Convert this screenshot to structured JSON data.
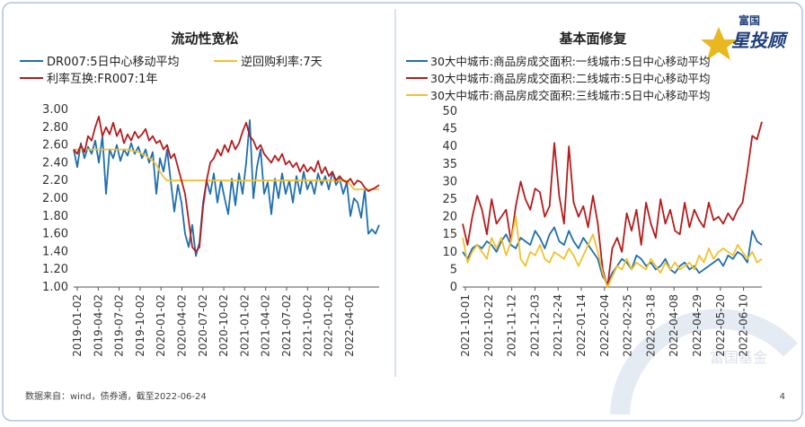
{
  "slide": {
    "footnote": "数据来自：wind，债券通，截至2022-06-24",
    "page_number": "4",
    "logo": {
      "brand_small": "富国",
      "brand_large": "星投顾"
    },
    "watermark": "富国基金",
    "colors": {
      "frame": "#b0c4de",
      "blue": "#1f6fae",
      "gold": "#f2c12e",
      "red": "#b51c1c",
      "axis": "#555555",
      "title": "#222222"
    }
  },
  "chart_data": [
    {
      "type": "line",
      "title": "流动性宽松",
      "xlabel": "",
      "ylabel": "",
      "ylim": [
        1.0,
        3.0
      ],
      "y_ticks": [
        "3.00",
        "2.80",
        "2.60",
        "2.40",
        "2.20",
        "2.00",
        "1.80",
        "1.60",
        "1.40",
        "1.20",
        "1.00"
      ],
      "x_ticks": [
        "2019-01-02",
        "2019-04-02",
        "2019-07-02",
        "2019-10-02",
        "2020-01-02",
        "2020-04-02",
        "2020-07-02",
        "2020-10-02",
        "2021-01-02",
        "2021-04-02",
        "2021-07-02",
        "2021-10-02",
        "2022-01-02",
        "2022-04-02"
      ],
      "grid": false,
      "legend": "top",
      "series": [
        {
          "name": "DR007:5日中心移动平均",
          "color": "#1f6fae",
          "values": [
            2.55,
            2.35,
            2.62,
            2.45,
            2.58,
            2.5,
            2.65,
            2.4,
            2.7,
            2.05,
            2.55,
            2.45,
            2.6,
            2.42,
            2.55,
            2.48,
            2.62,
            2.5,
            2.58,
            2.45,
            2.55,
            2.4,
            2.52,
            2.05,
            2.45,
            2.3,
            2.55,
            2.2,
            1.85,
            2.15,
            1.95,
            1.6,
            1.45,
            1.7,
            1.35,
            1.5,
            1.95,
            2.2,
            2.05,
            2.28,
            1.95,
            2.2,
            2.0,
            1.82,
            2.22,
            1.92,
            2.28,
            2.05,
            2.4,
            2.88,
            2.0,
            2.35,
            2.55,
            2.05,
            2.18,
            1.82,
            2.22,
            2.0,
            2.28,
            2.05,
            2.2,
            1.95,
            2.25,
            2.05,
            2.3,
            2.1,
            2.2,
            2.05,
            2.28,
            2.15,
            2.25,
            2.1,
            2.3,
            2.15,
            2.22,
            2.05,
            2.18,
            1.8,
            2.0,
            1.95,
            1.78,
            2.1,
            1.6,
            1.65,
            1.6,
            1.7
          ]
        },
        {
          "name": "逆回购利率:7天",
          "color": "#f2c12e",
          "values": [
            2.55,
            2.55,
            2.55,
            2.55,
            2.55,
            2.55,
            2.55,
            2.55,
            2.55,
            2.55,
            2.55,
            2.55,
            2.55,
            2.55,
            2.55,
            2.55,
            2.54,
            2.53,
            2.52,
            2.5,
            2.48,
            2.45,
            2.42,
            2.38,
            2.3,
            2.24,
            2.2,
            2.2,
            2.2,
            2.2,
            2.2,
            2.2,
            2.2,
            2.2,
            2.2,
            2.2,
            2.2,
            2.2,
            2.2,
            2.2,
            2.2,
            2.2,
            2.2,
            2.2,
            2.2,
            2.2,
            2.2,
            2.2,
            2.2,
            2.2,
            2.2,
            2.2,
            2.2,
            2.2,
            2.2,
            2.2,
            2.2,
            2.2,
            2.2,
            2.2,
            2.2,
            2.2,
            2.2,
            2.2,
            2.2,
            2.2,
            2.2,
            2.2,
            2.2,
            2.2,
            2.2,
            2.2,
            2.2,
            2.2,
            2.2,
            2.2,
            2.2,
            2.15,
            2.1,
            2.1,
            2.1,
            2.1,
            2.1,
            2.1,
            2.1,
            2.1
          ]
        },
        {
          "name": "利率互换:FR007:1年",
          "color": "#b51c1c",
          "values": [
            2.55,
            2.5,
            2.6,
            2.52,
            2.7,
            2.65,
            2.8,
            2.92,
            2.7,
            2.8,
            2.72,
            2.85,
            2.7,
            2.78,
            2.62,
            2.72,
            2.65,
            2.75,
            2.68,
            2.72,
            2.78,
            2.65,
            2.7,
            2.62,
            2.65,
            2.55,
            2.6,
            2.45,
            2.5,
            2.35,
            2.2,
            2.05,
            1.75,
            1.45,
            1.4,
            1.45,
            1.9,
            2.2,
            2.4,
            2.45,
            2.55,
            2.48,
            2.6,
            2.52,
            2.65,
            2.55,
            2.62,
            2.75,
            2.85,
            2.7,
            2.65,
            2.55,
            2.6,
            2.5,
            2.45,
            2.4,
            2.48,
            2.42,
            2.5,
            2.38,
            2.42,
            2.35,
            2.4,
            2.3,
            2.38,
            2.3,
            2.35,
            2.3,
            2.42,
            2.28,
            2.35,
            2.25,
            2.3,
            2.2,
            2.25,
            2.2,
            2.18,
            2.22,
            2.15,
            2.2,
            2.18,
            2.12,
            2.08,
            2.1,
            2.12,
            2.15
          ]
        }
      ]
    },
    {
      "type": "line",
      "title": "基本面修复",
      "xlabel": "",
      "ylabel": "",
      "ylim": [
        0,
        50
      ],
      "y_ticks": [
        "50",
        "45",
        "40",
        "35",
        "30",
        "25",
        "20",
        "15",
        "10",
        "5",
        "0"
      ],
      "x_ticks": [
        "2021-10-01",
        "2021-10-22",
        "2021-11-12",
        "2021-12-03",
        "2021-12-24",
        "2022-01-14",
        "2022-02-04",
        "2022-02-25",
        "2022-03-18",
        "2022-04-08",
        "2022-04-29",
        "2022-05-20",
        "2022-06-10"
      ],
      "grid": false,
      "legend": "top",
      "series": [
        {
          "name": "30大中城市:商品房成交面积:一线城市:5日中心移动平均",
          "color": "#1f6fae",
          "values": [
            10,
            8,
            11,
            12,
            11,
            13,
            12,
            10,
            13,
            15,
            12,
            11,
            14,
            13,
            12,
            16,
            14,
            11,
            15,
            17,
            13,
            12,
            16,
            13,
            11,
            14,
            12,
            10,
            8,
            3,
            1,
            4,
            6,
            8,
            7,
            5,
            9,
            8,
            6,
            7,
            5,
            6,
            8,
            5,
            4,
            6,
            7,
            5,
            6,
            4,
            5,
            6,
            7,
            8,
            6,
            9,
            8,
            10,
            9,
            7,
            16,
            13,
            12
          ]
        },
        {
          "name": "30大中城市:商品房成交面积:二线城市:5日中心移动平均",
          "color": "#b51c1c",
          "values": [
            18,
            12,
            20,
            26,
            22,
            15,
            25,
            18,
            20,
            22,
            13,
            23,
            30,
            25,
            22,
            28,
            27,
            20,
            23,
            41,
            26,
            18,
            40,
            24,
            20,
            23,
            17,
            26,
            18,
            5,
            0,
            11,
            14,
            10,
            21,
            16,
            22,
            12,
            24,
            18,
            14,
            25,
            18,
            22,
            16,
            15,
            24,
            17,
            22,
            19,
            17,
            24,
            19,
            20,
            18,
            21,
            19,
            22,
            24,
            33,
            43,
            42,
            47
          ]
        },
        {
          "name": "30大中城市:商品房成交面积:三线城市:5日中心移动平均",
          "color": "#f2c12e",
          "values": [
            14,
            7,
            10,
            12,
            10,
            8,
            14,
            11,
            14,
            9,
            13,
            20,
            8,
            6,
            10,
            9,
            12,
            8,
            7,
            10,
            9,
            8,
            11,
            9,
            6,
            9,
            12,
            15,
            10,
            4,
            0,
            3,
            6,
            5,
            8,
            5,
            7,
            6,
            5,
            8,
            6,
            4,
            7,
            5,
            7,
            5,
            6,
            7,
            5,
            9,
            7,
            11,
            8,
            10,
            11,
            10,
            9,
            12,
            10,
            8,
            10,
            7,
            8
          ]
        }
      ]
    }
  ]
}
